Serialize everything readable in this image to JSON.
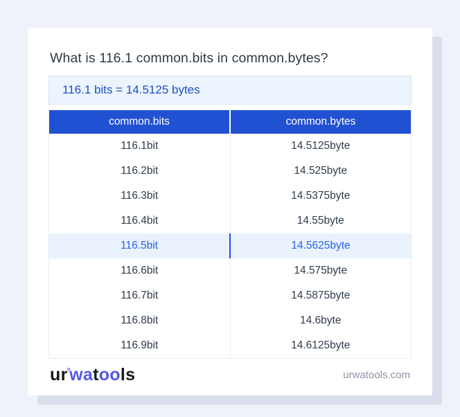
{
  "title": "What is 116.1 common.bits in common.bytes?",
  "result": "116.1 bits = 14.5125 bytes",
  "table": {
    "headers": [
      "common.bits",
      "common.bytes"
    ],
    "rows": [
      {
        "bits": "116.1bit",
        "bytes": "14.5125byte",
        "highlight": false
      },
      {
        "bits": "116.2bit",
        "bytes": "14.525byte",
        "highlight": false
      },
      {
        "bits": "116.3bit",
        "bytes": "14.5375byte",
        "highlight": false
      },
      {
        "bits": "116.4bit",
        "bytes": "14.55byte",
        "highlight": false
      },
      {
        "bits": "116.5bit",
        "bytes": "14.5625byte",
        "highlight": true
      },
      {
        "bits": "116.6bit",
        "bytes": "14.575byte",
        "highlight": false
      },
      {
        "bits": "116.7bit",
        "bytes": "14.5875byte",
        "highlight": false
      },
      {
        "bits": "116.8bit",
        "bytes": "14.6byte",
        "highlight": false
      },
      {
        "bits": "116.9bit",
        "bytes": "14.6125byte",
        "highlight": false
      }
    ]
  },
  "footer": {
    "logo": {
      "part1": "ur",
      "degree": "°",
      "part2": "wa",
      "part3": "t",
      "part4": "oo",
      "part5": "ls"
    },
    "site": "urwatools.com"
  },
  "colors": {
    "page_background": "#eff2f9",
    "card_background": "#ffffff",
    "card_shadow": "#d9deeb",
    "header_blue": "#2151d3",
    "result_box_background": "#ecf4fd",
    "result_box_border": "#d5e3f5",
    "result_text_blue": "#1d4fc4",
    "highlight_row_background": "#e9f2fd",
    "highlight_text_blue": "#2563eb",
    "highlight_divider_blue": "#1d4ed8",
    "body_text": "#2f3b4b",
    "logo_accent_blue": "#5458e4",
    "footer_gray": "#8b94a4"
  }
}
